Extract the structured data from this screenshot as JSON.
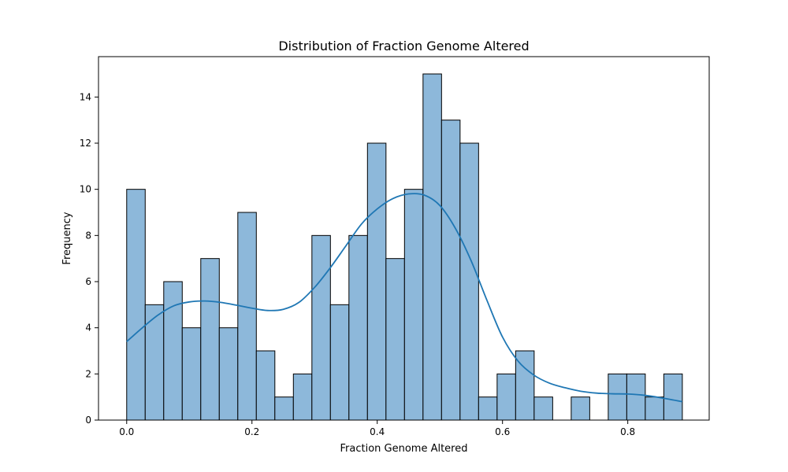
{
  "chart_data": {
    "type": "bar",
    "subtype": "histogram-with-kde",
    "title": "Distribution of Fraction Genome Altered",
    "xlabel": "Fraction Genome Altered",
    "ylabel": "Frequency",
    "xlim": [
      -0.045,
      0.93
    ],
    "ylim": [
      0,
      15.75
    ],
    "xticks": [
      0.0,
      0.2,
      0.4,
      0.6,
      0.8
    ],
    "xtick_labels": [
      "0.0",
      "0.2",
      "0.4",
      "0.6",
      "0.8"
    ],
    "yticks": [
      0,
      2,
      4,
      6,
      8,
      10,
      12,
      14
    ],
    "yticks_labels": [
      "0",
      "2",
      "4",
      "6",
      "8",
      "10",
      "12",
      "14"
    ],
    "bin_start": 0.0,
    "bin_width": 0.02957,
    "counts": [
      10,
      5,
      6,
      4,
      7,
      4,
      9,
      3,
      1,
      2,
      8,
      5,
      8,
      12,
      7,
      10,
      15,
      13,
      12,
      1,
      2,
      3,
      1,
      0,
      1,
      0,
      2,
      2,
      1,
      2
    ],
    "kde": {
      "x": [
        0.0,
        0.025,
        0.05,
        0.075,
        0.1,
        0.125,
        0.15,
        0.175,
        0.2,
        0.225,
        0.25,
        0.275,
        0.3,
        0.325,
        0.35,
        0.375,
        0.4,
        0.425,
        0.45,
        0.475,
        0.5,
        0.525,
        0.55,
        0.575,
        0.6,
        0.625,
        0.65,
        0.675,
        0.7,
        0.725,
        0.75,
        0.775,
        0.8,
        0.825,
        0.85,
        0.887
      ],
      "y": [
        3.4,
        4.0,
        4.55,
        4.95,
        5.12,
        5.16,
        5.1,
        4.98,
        4.85,
        4.75,
        4.8,
        5.1,
        5.75,
        6.6,
        7.55,
        8.5,
        9.15,
        9.6,
        9.8,
        9.75,
        9.3,
        8.3,
        6.9,
        5.2,
        3.6,
        2.55,
        1.95,
        1.6,
        1.4,
        1.25,
        1.17,
        1.14,
        1.13,
        1.08,
        0.98,
        0.8
      ]
    },
    "colors": {
      "bar_fill": "#8db8da",
      "bar_edge": "#000000",
      "kde_line": "#1f77b4"
    },
    "grid": false,
    "legend": "none"
  }
}
